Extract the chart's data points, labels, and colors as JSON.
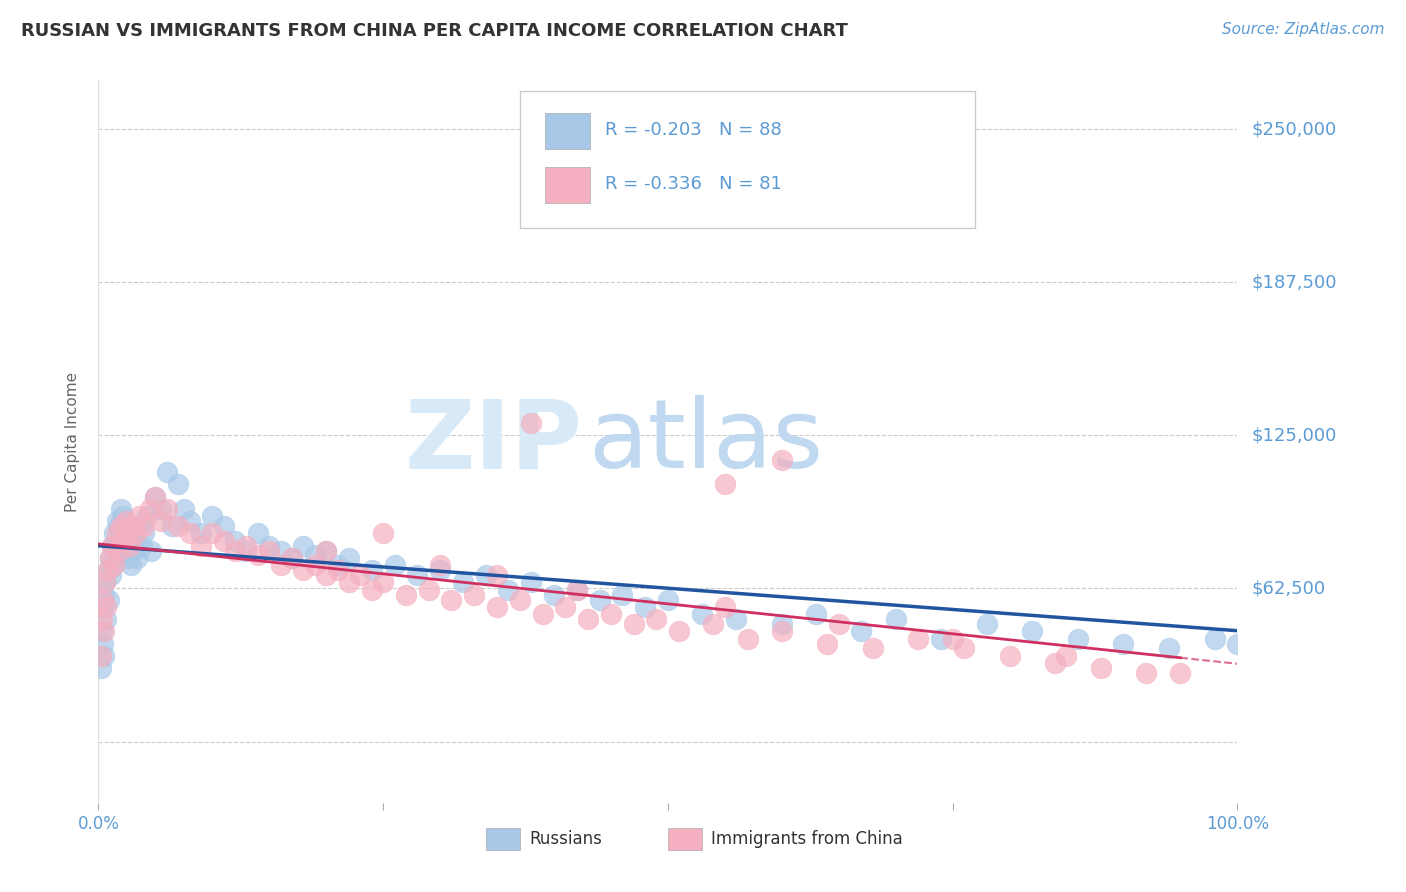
{
  "title": "RUSSIAN VS IMMIGRANTS FROM CHINA PER CAPITA INCOME CORRELATION CHART",
  "source_text": "Source: ZipAtlas.com",
  "ylabel": "Per Capita Income",
  "xlim": [
    0.0,
    100.0
  ],
  "ylim": [
    -25000,
    270000
  ],
  "yticks": [
    0,
    62500,
    125000,
    187500,
    250000
  ],
  "ytick_labels": [
    "",
    "$62,500",
    "$125,000",
    "$187,500",
    "$250,000"
  ],
  "axis_color": "#5b9bd5",
  "background_color": "#ffffff",
  "watermark_zip": "ZIP",
  "watermark_atlas": "atlas",
  "legend_r1": "-0.203",
  "legend_n1": "88",
  "legend_r2": "-0.336",
  "legend_n2": "81",
  "legend_label1": "Russians",
  "legend_label2": "Immigrants from China",
  "scatter_color1": "#a8c8e8",
  "scatter_color2": "#f4b0c0",
  "line_color1": "#2255a0",
  "line_color2": "#d03060",
  "russians_x": [
    0.2,
    0.3,
    0.4,
    0.4,
    0.5,
    0.5,
    0.6,
    0.7,
    0.8,
    0.9,
    1.0,
    1.1,
    1.2,
    1.3,
    1.4,
    1.5,
    1.6,
    1.7,
    1.8,
    1.9,
    2.0,
    2.1,
    2.2,
    2.3,
    2.4,
    2.5,
    2.6,
    2.7,
    2.8,
    2.9,
    3.0,
    3.2,
    3.4,
    3.6,
    3.8,
    4.0,
    4.3,
    4.6,
    5.0,
    5.5,
    6.0,
    6.5,
    7.0,
    7.5,
    8.0,
    9.0,
    10.0,
    11.0,
    12.0,
    13.0,
    14.0,
    15.0,
    16.0,
    17.0,
    18.0,
    19.0,
    20.0,
    21.0,
    22.0,
    24.0,
    26.0,
    28.0,
    30.0,
    32.0,
    34.0,
    36.0,
    38.0,
    40.0,
    42.0,
    44.0,
    46.0,
    48.0,
    50.0,
    53.0,
    56.0,
    60.0,
    63.0,
    67.0,
    70.0,
    74.0,
    78.0,
    82.0,
    86.0,
    90.0,
    94.0,
    98.0,
    100.0,
    50.0
  ],
  "russians_y": [
    30000,
    45000,
    55000,
    40000,
    60000,
    35000,
    65000,
    50000,
    70000,
    58000,
    75000,
    68000,
    80000,
    72000,
    85000,
    78000,
    90000,
    82000,
    88000,
    76000,
    95000,
    85000,
    92000,
    80000,
    86000,
    78000,
    84000,
    75000,
    80000,
    72000,
    78000,
    82000,
    75000,
    88000,
    80000,
    85000,
    92000,
    78000,
    100000,
    95000,
    110000,
    88000,
    105000,
    95000,
    90000,
    85000,
    92000,
    88000,
    82000,
    78000,
    85000,
    80000,
    78000,
    75000,
    80000,
    76000,
    78000,
    72000,
    75000,
    70000,
    72000,
    68000,
    70000,
    65000,
    68000,
    62000,
    65000,
    60000,
    62000,
    58000,
    60000,
    55000,
    58000,
    52000,
    50000,
    48000,
    52000,
    45000,
    50000,
    42000,
    48000,
    45000,
    42000,
    40000,
    38000,
    42000,
    40000,
    230000
  ],
  "china_x": [
    0.2,
    0.3,
    0.4,
    0.5,
    0.6,
    0.7,
    0.8,
    1.0,
    1.2,
    1.4,
    1.6,
    1.8,
    2.0,
    2.2,
    2.4,
    2.6,
    2.8,
    3.0,
    3.3,
    3.6,
    4.0,
    4.5,
    5.0,
    5.5,
    6.0,
    7.0,
    8.0,
    9.0,
    10.0,
    11.0,
    12.0,
    13.0,
    14.0,
    15.0,
    16.0,
    17.0,
    18.0,
    19.0,
    20.0,
    21.0,
    22.0,
    23.0,
    24.0,
    25.0,
    27.0,
    29.0,
    31.0,
    33.0,
    35.0,
    37.0,
    39.0,
    41.0,
    43.0,
    45.0,
    47.0,
    49.0,
    51.0,
    54.0,
    57.0,
    60.0,
    64.0,
    68.0,
    72.0,
    76.0,
    80.0,
    84.0,
    88.0,
    92.0,
    30.0,
    35.0,
    42.0,
    55.0,
    65.0,
    75.0,
    85.0,
    95.0,
    55.0,
    60.0,
    20.0,
    25.0,
    38.0
  ],
  "china_y": [
    35000,
    50000,
    58000,
    45000,
    65000,
    55000,
    70000,
    75000,
    80000,
    72000,
    85000,
    78000,
    88000,
    82000,
    90000,
    85000,
    80000,
    88000,
    85000,
    92000,
    88000,
    95000,
    100000,
    90000,
    95000,
    88000,
    85000,
    80000,
    85000,
    82000,
    78000,
    80000,
    76000,
    78000,
    72000,
    75000,
    70000,
    72000,
    68000,
    70000,
    65000,
    68000,
    62000,
    65000,
    60000,
    62000,
    58000,
    60000,
    55000,
    58000,
    52000,
    55000,
    50000,
    52000,
    48000,
    50000,
    45000,
    48000,
    42000,
    45000,
    40000,
    38000,
    42000,
    38000,
    35000,
    32000,
    30000,
    28000,
    72000,
    68000,
    62000,
    55000,
    48000,
    42000,
    35000,
    28000,
    105000,
    115000,
    78000,
    85000,
    130000
  ]
}
